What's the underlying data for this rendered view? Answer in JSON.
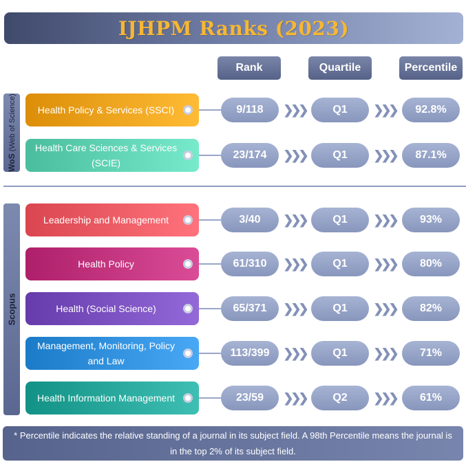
{
  "title": "IJHPM Ranks (2023)",
  "columns": {
    "rank": "Rank",
    "quartile": "Quartile",
    "percentile": "Percentile"
  },
  "sections": {
    "wos": {
      "label_bold": "WoS",
      "label_rest": " (Web of Science)"
    },
    "scopus": {
      "label": "Scopus"
    }
  },
  "arrow_glyph": "❯❯❯",
  "rows": [
    {
      "category": "Health Policy & Services (SSCI)",
      "rank": "9/118",
      "quartile": "Q1",
      "percentile": "92.8%",
      "color": "#f0a21c"
    },
    {
      "category": "Health Care Sciences & Services (SCIE)",
      "rank": "23/174",
      "quartile": "Q1",
      "percentile": "87.1%",
      "color": "#5fd1b3"
    },
    {
      "category": "Leadership and Management",
      "rank": "3/40",
      "quartile": "Q1",
      "percentile": "93%",
      "color": "#ee5a63"
    },
    {
      "category": "Health Policy",
      "rank": "61/310",
      "quartile": "Q1",
      "percentile": "80%",
      "color": "#c2337e"
    },
    {
      "category": "Health (Social Science)",
      "rank": "65/371",
      "quartile": "Q1",
      "percentile": "82%",
      "color": "#7a4fbf"
    },
    {
      "category": "Management, Monitoring, Policy and Law",
      "rank": "113/399",
      "quartile": "Q1",
      "percentile": "71%",
      "color": "#2f8fdc"
    },
    {
      "category": "Health Information Management",
      "rank": "23/59",
      "quartile": "Q2",
      "percentile": "61%",
      "color": "#26a69a"
    }
  ],
  "footnote": "* Percentile indicates the relative standing of a journal in its subject field. A 98th Percentile means the journal is in the top 2% of its subject field."
}
